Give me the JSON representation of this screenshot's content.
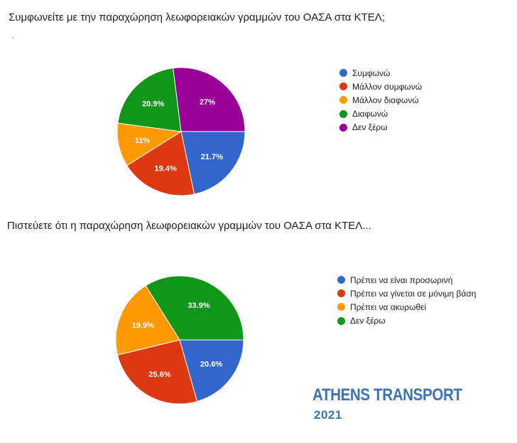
{
  "chart_data": [
    {
      "type": "pie",
      "title": "Συμφωνείτε με την παραχώρηση λεωφορειακών γραμμών του ΟΑΣΑ στα ΚΤΕΛ;",
      "legend_position": "right",
      "slices": [
        {
          "label": "Συμφωνώ",
          "value": 21.7,
          "value_label": "21.7%",
          "color": "#3366cc"
        },
        {
          "label": "Μάλλον συμφωνώ",
          "value": 19.4,
          "value_label": "19.4%",
          "color": "#dc3912"
        },
        {
          "label": "Μάλλον διαφωνώ",
          "value": 11,
          "value_label": "11%",
          "color": "#ff9900"
        },
        {
          "label": "Διαφωνώ",
          "value": 20.9,
          "value_label": "20.9%",
          "color": "#109618"
        },
        {
          "label": "Δεν ξέρω",
          "value": 27,
          "value_label": "27%",
          "color": "#990099"
        }
      ]
    },
    {
      "type": "pie",
      "title": "Πιστεύετε ότι η παραχώρηση λεωφορειακών γραμμών του ΟΑΣΑ στα ΚΤΕΛ...",
      "legend_position": "right",
      "slices": [
        {
          "label": "Πρέπει να είναι προσωρινή",
          "value": 20.6,
          "value_label": "20.6%",
          "color": "#3366cc"
        },
        {
          "label": "Πρέπει να γίνεται σε μόνιμη βάση",
          "value": 25.6,
          "value_label": "25.6%",
          "color": "#dc3912"
        },
        {
          "label": "Πρέπει να ακυρωθεί",
          "value": 19.9,
          "value_label": "19.9%",
          "color": "#ff9900"
        },
        {
          "label": "Δεν ξέρω",
          "value": 33.9,
          "value_label": "33.9%",
          "color": "#109618"
        }
      ]
    }
  ],
  "brand": {
    "name": "ATHENS TRANSPORT",
    "year": "2021"
  }
}
